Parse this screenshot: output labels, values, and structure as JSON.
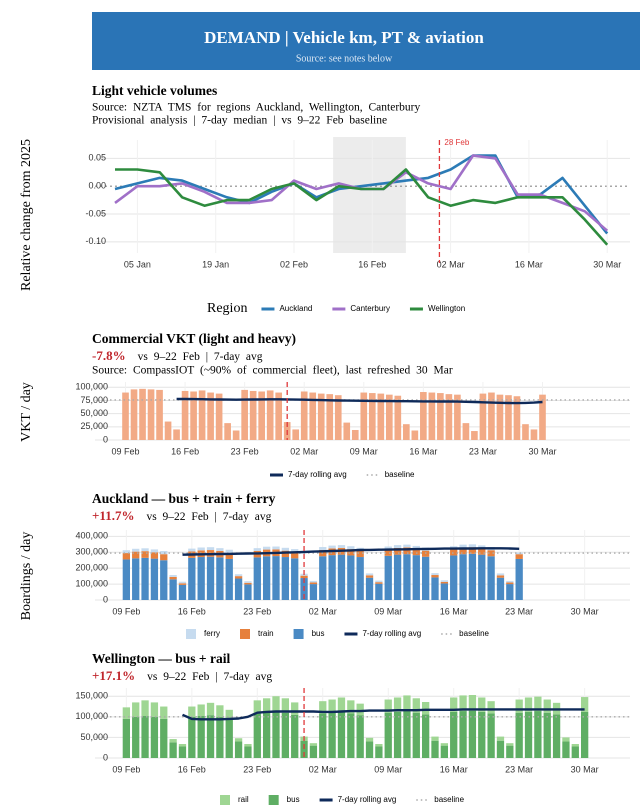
{
  "header": {
    "title": "DEMAND | Vehicle km, PT & aviation",
    "subtitle": "Source: see notes below"
  },
  "chart_data": [
    {
      "type": "line",
      "title": "Light vehicle volumes",
      "subtitle": [
        "Source: NZTA TMS for regions Auckland, Wellington, Canterbury",
        "Provisional analysis | 7-day median | vs 9–22 Feb baseline"
      ],
      "ylabel": "Relative change from 2025",
      "legend_title": "Region",
      "x": [
        "01 Jan",
        "05 Jan",
        "09 Jan",
        "13 Jan",
        "17 Jan",
        "21 Jan",
        "25 Jan",
        "29 Jan",
        "02 Feb",
        "06 Feb",
        "10 Feb",
        "14 Feb",
        "18 Feb",
        "22 Feb",
        "26 Feb",
        "02 Mar",
        "06 Mar",
        "10 Mar",
        "14 Mar",
        "18 Mar",
        "22 Mar",
        "26 Mar",
        "30 Mar"
      ],
      "series": [
        {
          "name": "Auckland",
          "color": "#2c7bb6",
          "values": [
            -0.005,
            0.005,
            0.015,
            0.01,
            -0.005,
            -0.02,
            -0.03,
            -0.01,
            0.005,
            -0.02,
            -0.005,
            0,
            0.005,
            0.01,
            0.015,
            0.03,
            0.055,
            0.055,
            -0.02,
            -0.015,
            0.015,
            -0.035,
            -0.085
          ]
        },
        {
          "name": "Canterbury",
          "color": "#a070c8",
          "values": [
            -0.03,
            0,
            0,
            0.005,
            -0.01,
            -0.03,
            -0.03,
            -0.025,
            0.01,
            -0.005,
            0.005,
            -0.005,
            -0.005,
            0.025,
            0.005,
            -0.005,
            0.055,
            0.05,
            -0.015,
            -0.015,
            -0.03,
            -0.045,
            -0.08
          ]
        },
        {
          "name": "Wellington",
          "color": "#2e8b3e",
          "values": [
            0.03,
            0.03,
            0.025,
            -0.02,
            -0.035,
            -0.025,
            -0.025,
            -0.005,
            0.005,
            -0.025,
            0,
            -0.005,
            -0.005,
            0.03,
            -0.02,
            -0.035,
            -0.025,
            -0.03,
            -0.02,
            -0.02,
            -0.02,
            -0.06,
            -0.105
          ]
        }
      ],
      "shade": [
        "09 Feb",
        "22 Feb"
      ],
      "annotation": "28 Feb",
      "xlim": [
        "01 Jan",
        "02 Apr"
      ],
      "xticks": [
        "05 Jan",
        "19 Jan",
        "02 Feb",
        "16 Feb",
        "02 Mar",
        "16 Mar",
        "30 Mar"
      ],
      "ylim": [
        -0.12,
        0.083
      ],
      "yticks": [
        0.05,
        {
          "value": 0,
          "label": "0.00"
        },
        -0.05,
        {
          "value": -0.1,
          "label": "-0.10"
        }
      ],
      "grid": true
    },
    {
      "type": "bar",
      "title": "Commercial VKT (light and heavy)",
      "headline": "-7.8%",
      "comparison": "vs 9–22 Feb | 7-day avg",
      "source": "Source: CompassIOT (~90% of commercial fleet), last refreshed 30 Mar",
      "ylabel": "VKT / day",
      "x": [
        "09 Feb",
        "10 Feb",
        "11 Feb",
        "12 Feb",
        "13 Feb",
        "14 Feb",
        "15 Feb",
        "16 Feb",
        "17 Feb",
        "18 Feb",
        "19 Feb",
        "20 Feb",
        "21 Feb",
        "22 Feb",
        "23 Feb",
        "24 Feb",
        "25 Feb",
        "26 Feb",
        "27 Feb",
        "28 Feb",
        "01 Mar",
        "02 Mar",
        "03 Mar",
        "04 Mar",
        "05 Mar",
        "06 Mar",
        "07 Mar",
        "08 Mar",
        "09 Mar",
        "10 Mar",
        "11 Mar",
        "12 Mar",
        "13 Mar",
        "14 Mar",
        "15 Mar",
        "16 Mar",
        "17 Mar",
        "18 Mar",
        "19 Mar",
        "20 Mar",
        "21 Mar",
        "22 Mar",
        "23 Mar",
        "24 Mar",
        "25 Mar",
        "26 Mar",
        "27 Mar",
        "28 Mar",
        "29 Mar",
        "30 Mar"
      ],
      "values": [
        90000,
        96000,
        97000,
        96000,
        95000,
        35000,
        20000,
        93000,
        92000,
        94000,
        90000,
        88000,
        32000,
        18000,
        95000,
        93000,
        92000,
        94000,
        90000,
        34000,
        20000,
        92000,
        90000,
        88000,
        87000,
        85000,
        33000,
        19000,
        90000,
        89000,
        88000,
        86000,
        84000,
        30000,
        18000,
        91000,
        90000,
        89000,
        87000,
        86000,
        32000,
        17000,
        88000,
        90000,
        86000,
        85000,
        83000,
        30000,
        20000,
        86000
      ],
      "color": "#f2aa86",
      "rolling": {
        "name": "7-day rolling avg",
        "color": "#0e2a5a",
        "values": [
          null,
          null,
          null,
          null,
          null,
          null,
          78000,
          77800,
          77600,
          77300,
          77000,
          76800,
          76600,
          76500,
          76700,
          76800,
          77000,
          77200,
          77100,
          77000,
          76700,
          76400,
          76000,
          75600,
          75300,
          75000,
          74800,
          74600,
          74400,
          74200,
          74000,
          73800,
          73600,
          73500,
          73400,
          73300,
          73200,
          73100,
          73000,
          72800,
          72500,
          72000,
          71500,
          71000,
          70500,
          70200,
          70000,
          70300,
          71000,
          72000
        ]
      },
      "baseline": {
        "name": "baseline",
        "color": "#aaaaaa",
        "value": 76000
      },
      "event_line": "28 Feb",
      "xlim": [
        "08 Feb",
        "31 Mar"
      ],
      "xticks": [
        "09 Feb",
        "16 Feb",
        "23 Feb",
        "02 Mar",
        "09 Mar",
        "16 Mar",
        "23 Mar",
        "30 Mar"
      ],
      "ylim": [
        0,
        110000
      ],
      "yticks": [
        0,
        {
          "value": 25000,
          "label": "25,000"
        },
        {
          "value": 50000,
          "label": "50,000"
        },
        {
          "value": 75000,
          "label": "75,000"
        },
        {
          "value": 100000,
          "label": "100,000"
        }
      ],
      "grid": true
    },
    {
      "type": "stacked_bar",
      "title": "Auckland — bus + train + ferry",
      "headline": "+11.7%",
      "comparison": "vs 9–22 Feb | 7-day avg",
      "ylabel": "Boardings / day",
      "x": [
        "09 Feb",
        "10 Feb",
        "11 Feb",
        "12 Feb",
        "13 Feb",
        "14 Feb",
        "15 Feb",
        "16 Feb",
        "17 Feb",
        "18 Feb",
        "19 Feb",
        "20 Feb",
        "21 Feb",
        "22 Feb",
        "23 Feb",
        "24 Feb",
        "25 Feb",
        "26 Feb",
        "27 Feb",
        "28 Feb",
        "01 Mar",
        "02 Mar",
        "03 Mar",
        "04 Mar",
        "05 Mar",
        "06 Mar",
        "07 Mar",
        "08 Mar",
        "09 Mar",
        "10 Mar",
        "11 Mar",
        "12 Mar",
        "13 Mar",
        "14 Mar",
        "15 Mar",
        "16 Mar",
        "17 Mar",
        "18 Mar",
        "19 Mar",
        "20 Mar",
        "21 Mar",
        "22 Mar",
        "23 Mar",
        "24 Mar",
        "25 Mar",
        "26 Mar",
        "27 Mar",
        "28 Mar",
        "29 Mar",
        "30 Mar"
      ],
      "series": [
        {
          "name": "ferry",
          "color": "#c6dbef",
          "values": [
            18000,
            18000,
            18000,
            18000,
            20000,
            12000,
            10000,
            18000,
            18000,
            18000,
            18000,
            20000,
            12000,
            10000,
            18000,
            18000,
            18000,
            18000,
            20000,
            12000,
            10000,
            18000,
            18000,
            18000,
            18000,
            20000,
            12000,
            10000,
            18000,
            18000,
            18000,
            18000,
            20000,
            12000,
            10000,
            18000,
            18000,
            18000,
            18000,
            20000,
            12000,
            10000,
            10000,
            null,
            null,
            null,
            null,
            null,
            null,
            null
          ]
        },
        {
          "name": "train",
          "color": "#e6803c",
          "values": [
            40000,
            42000,
            42000,
            40000,
            38000,
            15000,
            10000,
            40000,
            42000,
            42000,
            40000,
            38000,
            15000,
            10000,
            40000,
            42000,
            42000,
            40000,
            38000,
            15000,
            10000,
            40000,
            42000,
            42000,
            40000,
            38000,
            15000,
            10000,
            40000,
            42000,
            42000,
            40000,
            38000,
            15000,
            10000,
            40000,
            42000,
            42000,
            40000,
            38000,
            15000,
            10000,
            30000,
            null,
            null,
            null,
            null,
            null,
            null,
            null
          ]
        },
        {
          "name": "bus",
          "color": "#4a8ac4",
          "values": [
            255000,
            262000,
            265000,
            260000,
            250000,
            130000,
            95000,
            265000,
            270000,
            272000,
            268000,
            258000,
            135000,
            98000,
            268000,
            275000,
            276000,
            270000,
            262000,
            138000,
            100000,
            275000,
            282000,
            285000,
            280000,
            270000,
            140000,
            102000,
            278000,
            285000,
            288000,
            282000,
            272000,
            142000,
            104000,
            280000,
            288000,
            290000,
            285000,
            275000,
            140000,
            100000,
            258000,
            null,
            null,
            null,
            null,
            null,
            null,
            null
          ]
        }
      ],
      "rolling": {
        "name": "7-day rolling avg",
        "color": "#0e2a5a",
        "values": [
          null,
          null,
          null,
          null,
          null,
          null,
          285000,
          286000,
          287000,
          288000,
          289000,
          290000,
          291000,
          292000,
          293000,
          294000,
          296000,
          298000,
          300000,
          302000,
          304000,
          306000,
          308000,
          310000,
          312000,
          314000,
          315000,
          316000,
          317000,
          318000,
          319000,
          320000,
          321000,
          322000,
          323000,
          323000,
          324000,
          324000,
          325000,
          325000,
          325000,
          324000,
          322000,
          null,
          null,
          null,
          null,
          null,
          null,
          null
        ]
      },
      "baseline": {
        "name": "baseline",
        "color": "#aaaaaa",
        "value": 295000
      },
      "event_line": "28 Feb",
      "xlim": [
        "08 Feb",
        "31 Mar"
      ],
      "xticks": [
        "09 Feb",
        "16 Feb",
        "23 Feb",
        "02 Mar",
        "09 Mar",
        "16 Mar",
        "23 Mar",
        "30 Mar"
      ],
      "ylim": [
        0,
        440000
      ],
      "yticks": [
        0,
        {
          "value": 100000,
          "label": "100,000"
        },
        {
          "value": 200000,
          "label": "200,000"
        },
        {
          "value": 300000,
          "label": "300,000"
        },
        {
          "value": 400000,
          "label": "400,000"
        }
      ],
      "grid": true
    },
    {
      "type": "stacked_bar",
      "title": "Wellington — bus + rail",
      "headline": "+17.1%",
      "comparison": "vs 9–22 Feb | 7-day avg",
      "x": [
        "09 Feb",
        "10 Feb",
        "11 Feb",
        "12 Feb",
        "13 Feb",
        "14 Feb",
        "15 Feb",
        "16 Feb",
        "17 Feb",
        "18 Feb",
        "19 Feb",
        "20 Feb",
        "21 Feb",
        "22 Feb",
        "23 Feb",
        "24 Feb",
        "25 Feb",
        "26 Feb",
        "27 Feb",
        "28 Feb",
        "01 Mar",
        "02 Mar",
        "03 Mar",
        "04 Mar",
        "05 Mar",
        "06 Mar",
        "07 Mar",
        "08 Mar",
        "09 Mar",
        "10 Mar",
        "11 Mar",
        "12 Mar",
        "13 Mar",
        "14 Mar",
        "15 Mar",
        "16 Mar",
        "17 Mar",
        "18 Mar",
        "19 Mar",
        "20 Mar",
        "21 Mar",
        "22 Mar",
        "23 Mar",
        "24 Mar",
        "25 Mar",
        "26 Mar",
        "27 Mar",
        "28 Mar",
        "29 Mar",
        "30 Mar"
      ],
      "series": [
        {
          "name": "rail",
          "color": "#9fd693",
          "values": [
            28000,
            35000,
            38000,
            35000,
            30000,
            8000,
            6000,
            25000,
            28000,
            30000,
            28000,
            22000,
            8000,
            6000,
            32000,
            35000,
            38000,
            35000,
            30000,
            10000,
            6000,
            30000,
            32000,
            35000,
            32000,
            28000,
            9000,
            6000,
            32000,
            35000,
            38000,
            35000,
            30000,
            10000,
            6000,
            35000,
            38000,
            38000,
            35000,
            30000,
            10000,
            6000,
            32000,
            35000,
            35000,
            32000,
            28000,
            10000,
            6000,
            36000
          ]
        },
        {
          "name": "bus",
          "color": "#5fae64",
          "values": [
            95000,
            100000,
            102000,
            100000,
            95000,
            38000,
            28000,
            100000,
            102000,
            104000,
            100000,
            95000,
            40000,
            28000,
            108000,
            110000,
            112000,
            110000,
            105000,
            42000,
            30000,
            108000,
            110000,
            112000,
            108000,
            104000,
            40000,
            28000,
            110000,
            112000,
            114000,
            110000,
            106000,
            42000,
            30000,
            112000,
            114000,
            115000,
            112000,
            108000,
            42000,
            30000,
            110000,
            112000,
            114000,
            110000,
            106000,
            40000,
            28000,
            112000
          ]
        }
      ],
      "rolling": {
        "name": "7-day rolling avg",
        "color": "#0e2a5a",
        "values": [
          null,
          null,
          null,
          null,
          null,
          null,
          105000,
          95000,
          94000,
          94000,
          94000,
          95000,
          96000,
          100000,
          110000,
          112000,
          113000,
          113000,
          113000,
          113000,
          113000,
          112000,
          112000,
          113000,
          114000,
          114000,
          115000,
          115000,
          115000,
          116000,
          116000,
          116000,
          117000,
          117000,
          117000,
          117000,
          118000,
          118000,
          118000,
          118000,
          118000,
          118000,
          118000,
          118000,
          118000,
          118000,
          118000,
          118000,
          118000,
          118000
        ]
      },
      "baseline": {
        "name": "baseline",
        "color": "#aaaaaa",
        "value": 100000
      },
      "event_line": "28 Feb",
      "xlim": [
        "08 Feb",
        "31 Mar"
      ],
      "xticks": [
        "09 Feb",
        "16 Feb",
        "23 Feb",
        "02 Mar",
        "09 Mar",
        "16 Mar",
        "23 Mar",
        "30 Mar"
      ],
      "ylim": [
        0,
        170000
      ],
      "yticks": [
        0,
        {
          "value": 50000,
          "label": "50,000"
        },
        {
          "value": 100000,
          "label": "100,000"
        },
        {
          "value": 150000,
          "label": "150,000"
        }
      ],
      "grid": true
    }
  ]
}
